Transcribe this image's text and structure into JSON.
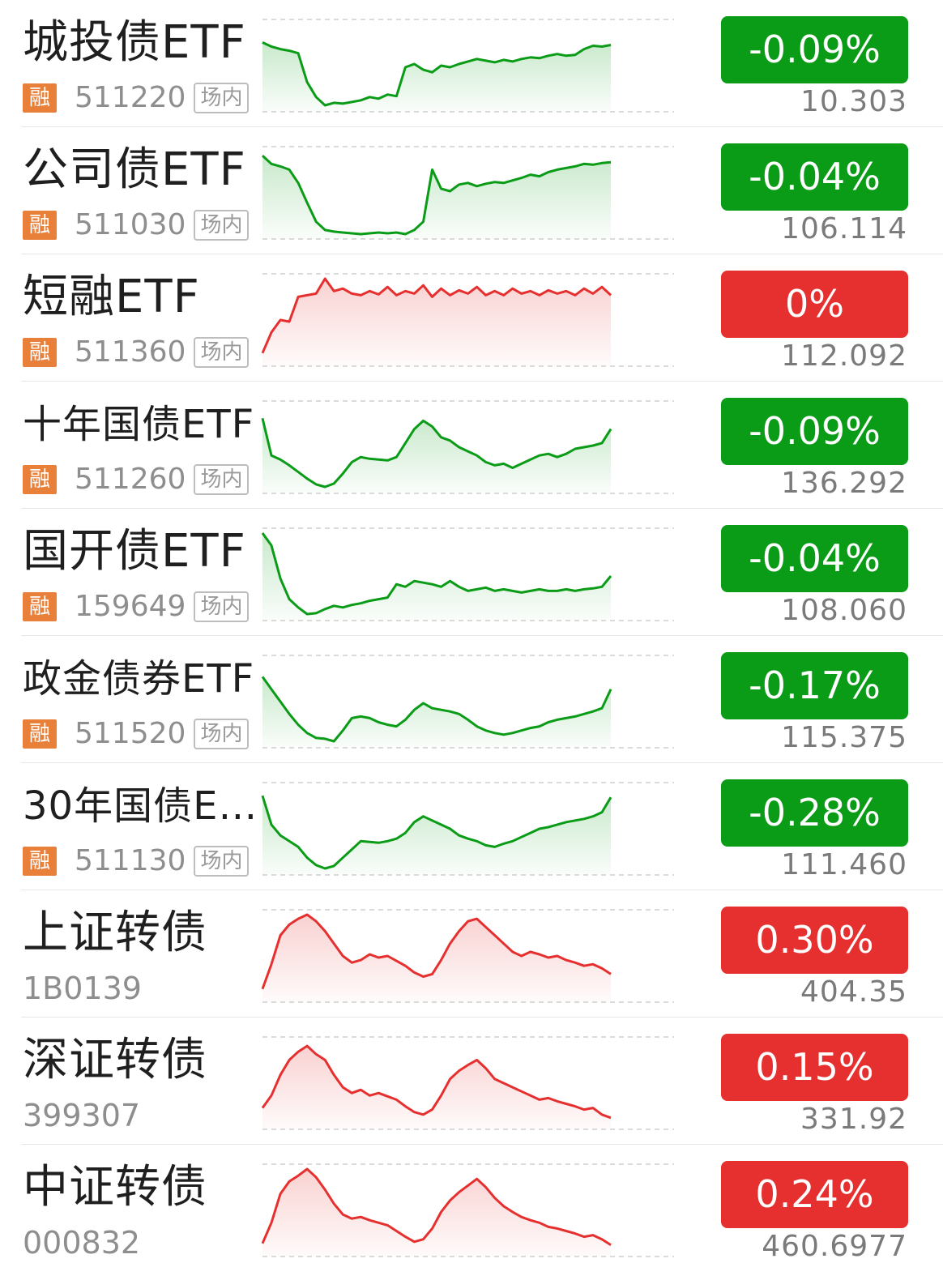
{
  "colors": {
    "down": "#0a9b17",
    "up": "#e5302f",
    "rong_badge": "#e8803a"
  },
  "funds": [
    {
      "name": "城投债ETF",
      "margin_badge": "融",
      "code": "511220",
      "market_badge": "场内",
      "change": "-0.09%",
      "price": "10.303",
      "trend": "down",
      "sparkline": [
        0.78,
        0.73,
        0.7,
        0.68,
        0.65,
        0.3,
        0.12,
        0.02,
        0.05,
        0.04,
        0.06,
        0.08,
        0.12,
        0.1,
        0.15,
        0.13,
        0.48,
        0.52,
        0.45,
        0.42,
        0.5,
        0.48,
        0.52,
        0.55,
        0.58,
        0.56,
        0.54,
        0.57,
        0.55,
        0.58,
        0.6,
        0.59,
        0.62,
        0.64,
        0.62,
        0.63,
        0.7,
        0.74,
        0.73,
        0.75
      ]
    },
    {
      "name": "公司债ETF",
      "margin_badge": "融",
      "code": "511030",
      "market_badge": "场内",
      "change": "-0.04%",
      "price": "106.114",
      "trend": "down",
      "sparkline": [
        0.95,
        0.85,
        0.82,
        0.78,
        0.62,
        0.38,
        0.15,
        0.05,
        0.03,
        0.02,
        0.01,
        0.0,
        0.01,
        0.02,
        0.01,
        0.02,
        0.0,
        0.05,
        0.15,
        0.78,
        0.55,
        0.52,
        0.6,
        0.62,
        0.58,
        0.61,
        0.63,
        0.62,
        0.65,
        0.68,
        0.72,
        0.7,
        0.75,
        0.78,
        0.8,
        0.82,
        0.85,
        0.84,
        0.86,
        0.87
      ]
    },
    {
      "name": "短融ETF",
      "margin_badge": "融",
      "code": "511360",
      "market_badge": "场内",
      "change": "0%",
      "price": "112.092",
      "trend": "up",
      "sparkline": [
        0.1,
        0.35,
        0.5,
        0.48,
        0.78,
        0.8,
        0.82,
        1.0,
        0.85,
        0.88,
        0.82,
        0.8,
        0.85,
        0.81,
        0.9,
        0.8,
        0.85,
        0.82,
        0.92,
        0.78,
        0.88,
        0.8,
        0.86,
        0.82,
        0.9,
        0.8,
        0.85,
        0.8,
        0.88,
        0.82,
        0.85,
        0.8,
        0.86,
        0.82,
        0.85,
        0.8,
        0.88,
        0.82,
        0.9,
        0.8
      ]
    },
    {
      "name": "十年国债ETF",
      "margin_badge": "融",
      "code": "511260",
      "market_badge": "场内",
      "change": "-0.09%",
      "price": "136.292",
      "trend": "down",
      "sparkline": [
        0.85,
        0.4,
        0.35,
        0.28,
        0.2,
        0.12,
        0.05,
        0.02,
        0.06,
        0.18,
        0.32,
        0.38,
        0.36,
        0.35,
        0.34,
        0.38,
        0.55,
        0.72,
        0.82,
        0.75,
        0.62,
        0.58,
        0.5,
        0.45,
        0.4,
        0.32,
        0.28,
        0.3,
        0.25,
        0.3,
        0.35,
        0.4,
        0.42,
        0.38,
        0.42,
        0.48,
        0.5,
        0.52,
        0.55,
        0.72
      ]
    },
    {
      "name": "国开债ETF",
      "margin_badge": "融",
      "code": "159649",
      "market_badge": "场内",
      "change": "-0.04%",
      "price": "108.060",
      "trend": "down",
      "sparkline": [
        1.0,
        0.85,
        0.45,
        0.2,
        0.1,
        0.02,
        0.03,
        0.08,
        0.12,
        0.1,
        0.13,
        0.15,
        0.18,
        0.2,
        0.22,
        0.38,
        0.35,
        0.42,
        0.4,
        0.38,
        0.35,
        0.42,
        0.35,
        0.3,
        0.32,
        0.34,
        0.3,
        0.32,
        0.3,
        0.28,
        0.3,
        0.32,
        0.3,
        0.3,
        0.32,
        0.3,
        0.32,
        0.33,
        0.35,
        0.48
      ]
    },
    {
      "name": "政金债券ETF",
      "margin_badge": "融",
      "code": "511520",
      "market_badge": "场内",
      "change": "-0.17%",
      "price": "115.375",
      "trend": "down",
      "sparkline": [
        0.8,
        0.65,
        0.5,
        0.35,
        0.22,
        0.12,
        0.06,
        0.05,
        0.02,
        0.15,
        0.3,
        0.32,
        0.3,
        0.25,
        0.22,
        0.2,
        0.28,
        0.4,
        0.48,
        0.42,
        0.4,
        0.38,
        0.35,
        0.28,
        0.2,
        0.15,
        0.12,
        0.1,
        0.12,
        0.15,
        0.18,
        0.2,
        0.25,
        0.28,
        0.3,
        0.32,
        0.35,
        0.38,
        0.42,
        0.65
      ]
    },
    {
      "name": "30年国债ET...",
      "margin_badge": "融",
      "code": "511130",
      "market_badge": "场内",
      "change": "-0.28%",
      "price": "111.460",
      "trend": "down",
      "sparkline": [
        0.9,
        0.55,
        0.42,
        0.35,
        0.28,
        0.15,
        0.06,
        0.02,
        0.05,
        0.15,
        0.25,
        0.35,
        0.34,
        0.33,
        0.35,
        0.38,
        0.45,
        0.58,
        0.65,
        0.6,
        0.55,
        0.5,
        0.42,
        0.38,
        0.35,
        0.3,
        0.28,
        0.32,
        0.35,
        0.4,
        0.45,
        0.5,
        0.52,
        0.55,
        0.58,
        0.6,
        0.62,
        0.65,
        0.7,
        0.88
      ]
    },
    {
      "name": "上证转债",
      "code": "1B0139",
      "change": "0.30%",
      "price": "404.35",
      "trend": "up",
      "sparkline": [
        0.1,
        0.4,
        0.75,
        0.88,
        0.95,
        1.0,
        0.92,
        0.8,
        0.65,
        0.5,
        0.42,
        0.45,
        0.52,
        0.48,
        0.5,
        0.44,
        0.38,
        0.3,
        0.25,
        0.28,
        0.45,
        0.65,
        0.8,
        0.92,
        0.95,
        0.85,
        0.75,
        0.65,
        0.55,
        0.5,
        0.55,
        0.52,
        0.48,
        0.5,
        0.45,
        0.42,
        0.38,
        0.4,
        0.35,
        0.28
      ]
    },
    {
      "name": "深证转债",
      "code": "399307",
      "change": "0.15%",
      "price": "331.92",
      "trend": "up",
      "sparkline": [
        0.2,
        0.35,
        0.6,
        0.78,
        0.88,
        0.95,
        0.85,
        0.78,
        0.6,
        0.45,
        0.38,
        0.42,
        0.35,
        0.38,
        0.34,
        0.3,
        0.22,
        0.15,
        0.12,
        0.18,
        0.35,
        0.55,
        0.65,
        0.72,
        0.78,
        0.68,
        0.55,
        0.5,
        0.45,
        0.4,
        0.35,
        0.3,
        0.32,
        0.28,
        0.25,
        0.22,
        0.18,
        0.2,
        0.12,
        0.08
      ]
    },
    {
      "name": "中证转债",
      "code": "000832",
      "change": "0.24%",
      "price": "460.6977",
      "trend": "up",
      "sparkline": [
        0.1,
        0.35,
        0.7,
        0.85,
        0.92,
        1.0,
        0.9,
        0.75,
        0.58,
        0.45,
        0.4,
        0.42,
        0.38,
        0.35,
        0.32,
        0.25,
        0.18,
        0.12,
        0.15,
        0.28,
        0.48,
        0.62,
        0.72,
        0.8,
        0.88,
        0.78,
        0.65,
        0.55,
        0.48,
        0.42,
        0.38,
        0.35,
        0.3,
        0.28,
        0.25,
        0.22,
        0.18,
        0.2,
        0.15,
        0.08
      ]
    }
  ]
}
